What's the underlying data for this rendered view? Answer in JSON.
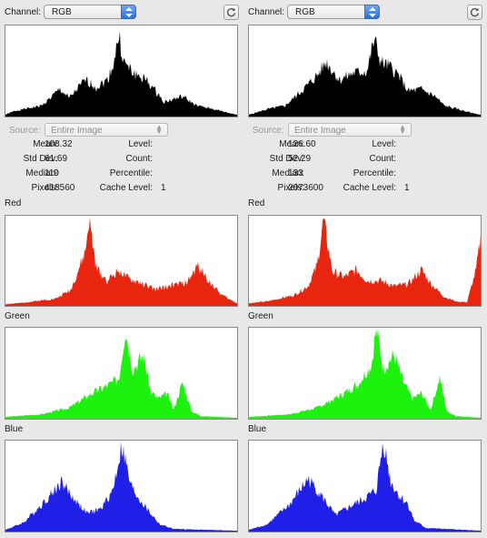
{
  "panels": [
    {
      "channel_label": "Channel:",
      "channel_value": "RGB",
      "source_label": "Source:",
      "source_value": "Entire Image",
      "stats": {
        "mean_label": "Mean:",
        "mean": "108.32",
        "stddev_label": "Std Dev:",
        "stddev": "61.69",
        "median_label": "Median:",
        "median": "119",
        "pixels_label": "Pixels:",
        "pixels": "418560",
        "level_label": "Level:",
        "level": "",
        "count_label": "Count:",
        "count": "",
        "percentile_label": "Percentile:",
        "percentile": "",
        "cache_label": "Cache Level:",
        "cache": "1"
      },
      "red_label": "Red",
      "green_label": "Green",
      "blue_label": "Blue"
    },
    {
      "channel_label": "Channel:",
      "channel_value": "RGB",
      "source_label": "Source:",
      "source_value": "Entire Image",
      "stats": {
        "mean_label": "Mean:",
        "mean": "126.60",
        "stddev_label": "Std Dev:",
        "stddev": "52.29",
        "median_label": "Median:",
        "median": "133",
        "pixels_label": "Pixels:",
        "pixels": "2073600",
        "level_label": "Level:",
        "level": "",
        "count_label": "Count:",
        "count": "",
        "percentile_label": "Percentile:",
        "percentile": "",
        "cache_label": "Cache Level:",
        "cache": "1"
      },
      "red_label": "Red",
      "green_label": "Green",
      "blue_label": "Blue"
    }
  ],
  "icons": {
    "channel_arrow": "up-down-arrows-icon",
    "refresh": "refresh-icon",
    "source_arrow": "up-down-arrows-icon"
  },
  "colors": {
    "rgb": "#000000",
    "red": "#e8260f",
    "green": "#1df20f",
    "blue": "#1f1fe8"
  },
  "chart_data": [
    {
      "type": "area",
      "panel": "left",
      "channel": "RGB",
      "peaks": [
        [
          0,
          2
        ],
        [
          10,
          6
        ],
        [
          40,
          12
        ],
        [
          60,
          30
        ],
        [
          70,
          20
        ],
        [
          88,
          40
        ],
        [
          100,
          32
        ],
        [
          112,
          40
        ],
        [
          118,
          55
        ],
        [
          125,
          88
        ],
        [
          130,
          60
        ],
        [
          140,
          48
        ],
        [
          155,
          40
        ],
        [
          175,
          16
        ],
        [
          195,
          22
        ],
        [
          210,
          12
        ],
        [
          230,
          8
        ],
        [
          245,
          4
        ],
        [
          255,
          2
        ]
      ]
    },
    {
      "type": "area",
      "panel": "left",
      "channel": "Red",
      "peaks": [
        [
          0,
          2
        ],
        [
          15,
          3
        ],
        [
          55,
          8
        ],
        [
          72,
          18
        ],
        [
          88,
          60
        ],
        [
          92,
          95
        ],
        [
          100,
          42
        ],
        [
          112,
          28
        ],
        [
          125,
          40
        ],
        [
          135,
          30
        ],
        [
          150,
          25
        ],
        [
          165,
          18
        ],
        [
          180,
          22
        ],
        [
          200,
          26
        ],
        [
          212,
          45
        ],
        [
          222,
          30
        ],
        [
          235,
          15
        ],
        [
          245,
          8
        ],
        [
          255,
          3
        ]
      ]
    },
    {
      "type": "area",
      "panel": "left",
      "channel": "Green",
      "peaks": [
        [
          0,
          2
        ],
        [
          40,
          5
        ],
        [
          70,
          12
        ],
        [
          95,
          28
        ],
        [
          115,
          38
        ],
        [
          125,
          45
        ],
        [
          132,
          100
        ],
        [
          140,
          55
        ],
        [
          152,
          70
        ],
        [
          160,
          30
        ],
        [
          168,
          22
        ],
        [
          178,
          28
        ],
        [
          185,
          10
        ],
        [
          195,
          40
        ],
        [
          205,
          8
        ],
        [
          215,
          3
        ],
        [
          255,
          1
        ]
      ]
    },
    {
      "type": "area",
      "panel": "left",
      "channel": "Blue",
      "peaks": [
        [
          0,
          2
        ],
        [
          20,
          10
        ],
        [
          45,
          35
        ],
        [
          62,
          55
        ],
        [
          72,
          40
        ],
        [
          90,
          20
        ],
        [
          105,
          25
        ],
        [
          118,
          45
        ],
        [
          128,
          95
        ],
        [
          138,
          50
        ],
        [
          148,
          35
        ],
        [
          158,
          22
        ],
        [
          170,
          8
        ],
        [
          185,
          3
        ],
        [
          255,
          1
        ]
      ]
    },
    {
      "type": "area",
      "panel": "right",
      "channel": "RGB",
      "peaks": [
        [
          0,
          2
        ],
        [
          20,
          8
        ],
        [
          40,
          12
        ],
        [
          60,
          30
        ],
        [
          75,
          45
        ],
        [
          85,
          60
        ],
        [
          100,
          40
        ],
        [
          115,
          48
        ],
        [
          130,
          50
        ],
        [
          138,
          85
        ],
        [
          145,
          60
        ],
        [
          155,
          55
        ],
        [
          165,
          45
        ],
        [
          175,
          28
        ],
        [
          190,
          30
        ],
        [
          205,
          22
        ],
        [
          215,
          12
        ],
        [
          230,
          8
        ],
        [
          245,
          4
        ],
        [
          255,
          2
        ]
      ]
    },
    {
      "type": "area",
      "panel": "right",
      "channel": "Red",
      "peaks": [
        [
          0,
          3
        ],
        [
          20,
          5
        ],
        [
          50,
          12
        ],
        [
          65,
          22
        ],
        [
          75,
          45
        ],
        [
          82,
          95
        ],
        [
          92,
          38
        ],
        [
          105,
          32
        ],
        [
          118,
          40
        ],
        [
          130,
          28
        ],
        [
          145,
          28
        ],
        [
          160,
          22
        ],
        [
          175,
          24
        ],
        [
          190,
          40
        ],
        [
          200,
          25
        ],
        [
          215,
          10
        ],
        [
          228,
          5
        ],
        [
          240,
          4
        ],
        [
          250,
          40
        ],
        [
          255,
          75
        ]
      ]
    },
    {
      "type": "area",
      "panel": "right",
      "channel": "Green",
      "peaks": [
        [
          0,
          2
        ],
        [
          45,
          5
        ],
        [
          75,
          12
        ],
        [
          100,
          25
        ],
        [
          120,
          38
        ],
        [
          135,
          60
        ],
        [
          140,
          100
        ],
        [
          148,
          55
        ],
        [
          160,
          70
        ],
        [
          170,
          40
        ],
        [
          180,
          22
        ],
        [
          190,
          28
        ],
        [
          200,
          10
        ],
        [
          210,
          45
        ],
        [
          218,
          8
        ],
        [
          228,
          3
        ],
        [
          255,
          1
        ]
      ]
    },
    {
      "type": "area",
      "panel": "right",
      "channel": "Blue",
      "peaks": [
        [
          0,
          2
        ],
        [
          20,
          8
        ],
        [
          45,
          30
        ],
        [
          65,
          58
        ],
        [
          78,
          42
        ],
        [
          95,
          18
        ],
        [
          112,
          28
        ],
        [
          125,
          35
        ],
        [
          140,
          45
        ],
        [
          148,
          100
        ],
        [
          156,
          55
        ],
        [
          165,
          40
        ],
        [
          175,
          30
        ],
        [
          182,
          12
        ],
        [
          195,
          4
        ],
        [
          255,
          1
        ]
      ]
    }
  ]
}
